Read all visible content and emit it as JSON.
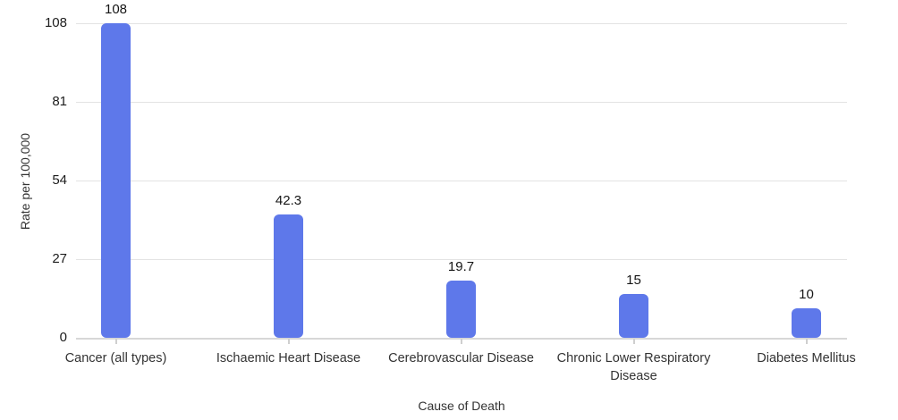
{
  "chart_data": {
    "type": "bar",
    "title": "",
    "xlabel": "Cause of Death",
    "ylabel": "Rate per 100,000",
    "categories": [
      "Cancer (all types)",
      "Ischaemic Heart Disease",
      "Cerebrovascular Disease",
      "Chronic Lower Respiratory Disease",
      "Diabetes Mellitus"
    ],
    "values": [
      108,
      42.3,
      19.7,
      15,
      10
    ],
    "value_labels": [
      "108",
      "42.3",
      "19.7",
      "15",
      "10"
    ],
    "ylim": [
      0,
      108
    ],
    "yticks": [
      0,
      27,
      54,
      81,
      108
    ],
    "grid": true,
    "legend": "none",
    "colors": {
      "bar": "#5e78ea",
      "gridline": "#e3e3e3",
      "axis_line": "#d7d7d7",
      "tick_mark": "#cfcfcf",
      "value_text": "#151515",
      "axis_text": "#333333"
    }
  }
}
